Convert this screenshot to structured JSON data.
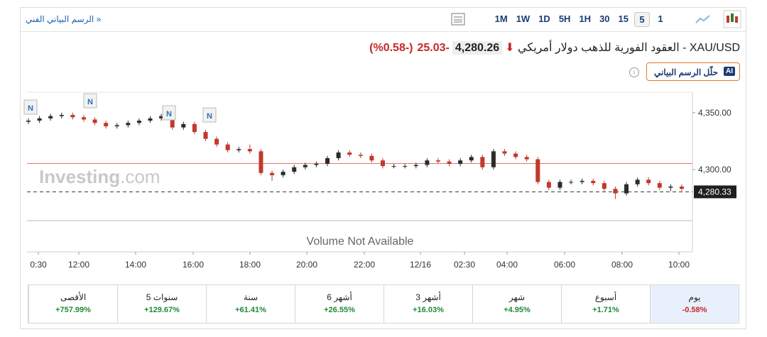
{
  "header": {
    "link": "الرسم البياني الفني »",
    "timeframes": [
      "1M",
      "1W",
      "1D",
      "5H",
      "1H",
      "30",
      "15",
      "5",
      "1"
    ],
    "active_timeframe": "5"
  },
  "quote": {
    "name": "XAU/USD - العقود الفورية للذهب دولار أمريكي",
    "price": "4,280.26",
    "change": "-25.03",
    "change_pct": "(-0.58%)"
  },
  "ai_button": {
    "badge": "AI",
    "label": "حلّل الرسم البياني"
  },
  "watermark": {
    "brand": "Investing",
    "suffix": ".com"
  },
  "volume_note": "Volume Not Available",
  "news_markers": [
    "N",
    "N",
    "N",
    "N"
  ],
  "chart_data": {
    "type": "candlestick",
    "up_color": "#2b2b2b",
    "down_color": "#c0392b",
    "ylim": [
      4255,
      4368
    ],
    "yticks": [
      {
        "value": 4350,
        "label": "4,350.00"
      },
      {
        "value": 4300,
        "label": "4,300.00"
      }
    ],
    "xtick_labels": [
      "0:30",
      "12:00",
      "14:00",
      "16:00",
      "18:00",
      "20:00",
      "22:00",
      "12/16",
      "02:30",
      "04:00",
      "06:00",
      "08:00",
      "10:00"
    ],
    "reference_line": 4305.29,
    "last_price": {
      "value": 4280.33,
      "label": "4,280.33"
    },
    "candles": [
      {
        "open": 4342,
        "high": 4345,
        "low": 4340,
        "close": 4343
      },
      {
        "open": 4343,
        "high": 4347,
        "low": 4341,
        "close": 4345
      },
      {
        "open": 4345,
        "high": 4349,
        "low": 4343,
        "close": 4347
      },
      {
        "open": 4347,
        "high": 4350,
        "low": 4345,
        "close": 4348
      },
      {
        "open": 4348,
        "high": 4350,
        "low": 4344,
        "close": 4346
      },
      {
        "open": 4346,
        "high": 4348,
        "low": 4342,
        "close": 4344
      },
      {
        "open": 4344,
        "high": 4346,
        "low": 4339,
        "close": 4341
      },
      {
        "open": 4341,
        "high": 4343,
        "low": 4336,
        "close": 4338
      },
      {
        "open": 4338,
        "high": 4341,
        "low": 4336,
        "close": 4339
      },
      {
        "open": 4339,
        "high": 4343,
        "low": 4337,
        "close": 4341
      },
      {
        "open": 4341,
        "high": 4345,
        "low": 4339,
        "close": 4343
      },
      {
        "open": 4343,
        "high": 4347,
        "low": 4341,
        "close": 4345
      },
      {
        "open": 4345,
        "high": 4349,
        "low": 4343,
        "close": 4347
      },
      {
        "open": 4347,
        "high": 4349,
        "low": 4335,
        "close": 4337
      },
      {
        "open": 4337,
        "high": 4342,
        "low": 4335,
        "close": 4340
      },
      {
        "open": 4340,
        "high": 4342,
        "low": 4331,
        "close": 4333
      },
      {
        "open": 4333,
        "high": 4335,
        "low": 4325,
        "close": 4327
      },
      {
        "open": 4327,
        "high": 4329,
        "low": 4320,
        "close": 4322
      },
      {
        "open": 4322,
        "high": 4324,
        "low": 4315,
        "close": 4317
      },
      {
        "open": 4317,
        "high": 4320,
        "low": 4315,
        "close": 4318
      },
      {
        "open": 4318,
        "high": 4322,
        "low": 4314,
        "close": 4316
      },
      {
        "open": 4316,
        "high": 4318,
        "low": 4295,
        "close": 4297
      },
      {
        "open": 4297,
        "high": 4299,
        "low": 4290,
        "close": 4295
      },
      {
        "open": 4295,
        "high": 4300,
        "low": 4293,
        "close": 4298
      },
      {
        "open": 4298,
        "high": 4304,
        "low": 4296,
        "close": 4302
      },
      {
        "open": 4302,
        "high": 4306,
        "low": 4300,
        "close": 4304
      },
      {
        "open": 4304,
        "high": 4307,
        "low": 4302,
        "close": 4305
      },
      {
        "open": 4305,
        "high": 4312,
        "low": 4303,
        "close": 4310
      },
      {
        "open": 4310,
        "high": 4317,
        "low": 4308,
        "close": 4315
      },
      {
        "open": 4315,
        "high": 4317,
        "low": 4311,
        "close": 4313
      },
      {
        "open": 4313,
        "high": 4315,
        "low": 4310,
        "close": 4312
      },
      {
        "open": 4312,
        "high": 4314,
        "low": 4306,
        "close": 4308
      },
      {
        "open": 4308,
        "high": 4310,
        "low": 4301,
        "close": 4303
      },
      {
        "open": 4303,
        "high": 4305,
        "low": 4301,
        "close": 4303
      },
      {
        "open": 4303,
        "high": 4305,
        "low": 4301,
        "close": 4303
      },
      {
        "open": 4303,
        "high": 4306,
        "low": 4301,
        "close": 4304
      },
      {
        "open": 4304,
        "high": 4310,
        "low": 4302,
        "close": 4308
      },
      {
        "open": 4308,
        "high": 4310,
        "low": 4305,
        "close": 4307
      },
      {
        "open": 4307,
        "high": 4309,
        "low": 4303,
        "close": 4305
      },
      {
        "open": 4305,
        "high": 4310,
        "low": 4303,
        "close": 4308
      },
      {
        "open": 4308,
        "high": 4313,
        "low": 4306,
        "close": 4311
      },
      {
        "open": 4311,
        "high": 4313,
        "low": 4300,
        "close": 4302
      },
      {
        "open": 4302,
        "high": 4318,
        "low": 4300,
        "close": 4316
      },
      {
        "open": 4316,
        "high": 4318,
        "low": 4312,
        "close": 4314
      },
      {
        "open": 4314,
        "high": 4316,
        "low": 4309,
        "close": 4311
      },
      {
        "open": 4311,
        "high": 4313,
        "low": 4307,
        "close": 4309
      },
      {
        "open": 4309,
        "high": 4311,
        "low": 4287,
        "close": 4289
      },
      {
        "open": 4289,
        "high": 4291,
        "low": 4282,
        "close": 4284
      },
      {
        "open": 4284,
        "high": 4291,
        "low": 4282,
        "close": 4289
      },
      {
        "open": 4289,
        "high": 4291,
        "low": 4287,
        "close": 4289
      },
      {
        "open": 4289,
        "high": 4292,
        "low": 4287,
        "close": 4290
      },
      {
        "open": 4290,
        "high": 4292,
        "low": 4286,
        "close": 4288
      },
      {
        "open": 4288,
        "high": 4290,
        "low": 4281,
        "close": 4283
      },
      {
        "open": 4283,
        "high": 4285,
        "low": 4274,
        "close": 4279
      },
      {
        "open": 4279,
        "high": 4289,
        "low": 4277,
        "close": 4287
      },
      {
        "open": 4287,
        "high": 4293,
        "low": 4285,
        "close": 4291
      },
      {
        "open": 4291,
        "high": 4293,
        "low": 4286,
        "close": 4288
      },
      {
        "open": 4288,
        "high": 4290,
        "low": 4282,
        "close": 4284
      },
      {
        "open": 4284,
        "high": 4287,
        "low": 4281,
        "close": 4285
      },
      {
        "open": 4285,
        "high": 4287,
        "low": 4281,
        "close": 4283
      }
    ]
  },
  "performance": {
    "rows": [
      {
        "period": "يوم",
        "change": "-0.58%"
      },
      {
        "period": "أسبوع",
        "change": "+1.71%"
      },
      {
        "period": "شهر",
        "change": "+4.95%"
      },
      {
        "period": "3 أشهر",
        "change": "+16.03%"
      },
      {
        "period": "6 أشهر",
        "change": "+26.55%"
      },
      {
        "period": "سنة",
        "change": "+61.41%"
      },
      {
        "period": "5 سنوات",
        "change": "+129.67%"
      },
      {
        "period": "الأقصى",
        "change": "+757.99%"
      }
    ]
  }
}
